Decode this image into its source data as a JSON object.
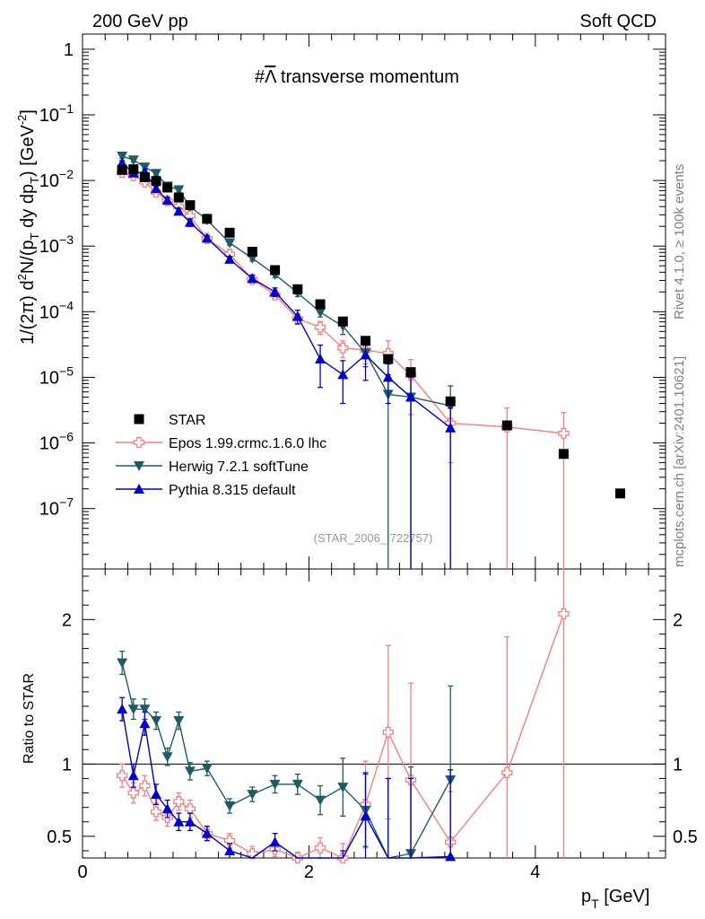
{
  "header": {
    "left": "200 GeV pp",
    "right": "Soft QCD"
  },
  "side_labels": {
    "rivet": "Rivet 4.1.0, ≥ 100k events",
    "mcplots": "mcplots.cern.ch [arXiv:2401.10621]"
  },
  "chart_data": {
    "type": "scatter",
    "title": "#Λ̅ transverse momentum",
    "title_parts": {
      "prefix": "#",
      "symbol": "Λ",
      "suffix": " transverse momentum"
    },
    "watermark": "(STAR_2006_I722757)",
    "ylabel_top": {
      "prefix": "1/(2",
      "pi": "π",
      "mid": ")  d",
      "sup2": "2",
      "main": "N/(p",
      "sub1": "T",
      "mid2": " dy dp",
      "sub2": "T",
      "close": ") [GeV",
      "sup": "-2",
      "end": "]"
    },
    "ylabel_bottom": "Ratio to STAR",
    "xlabel": {
      "main": "p",
      "sub": "T",
      "unit": " [GeV]"
    },
    "xlim": [
      0,
      5.15
    ],
    "ylim_top": [
      1.2e-08,
      1.7
    ],
    "ylim_ratio": [
      0.35,
      2.35
    ],
    "x_ticks": [
      {
        "value": 0,
        "label": "0"
      },
      {
        "value": 2,
        "label": "2"
      },
      {
        "value": 4,
        "label": "4"
      }
    ],
    "y_ticks_top": [
      {
        "value": 1,
        "base": "1",
        "exp": ""
      },
      {
        "value": 0.1,
        "base": "10",
        "exp": "−1"
      },
      {
        "value": 0.01,
        "base": "10",
        "exp": "−2"
      },
      {
        "value": 0.001,
        "base": "10",
        "exp": "−3"
      },
      {
        "value": 0.0001,
        "base": "10",
        "exp": "−4"
      },
      {
        "value": 1e-05,
        "base": "10",
        "exp": "−5"
      },
      {
        "value": 1e-06,
        "base": "10",
        "exp": "−6"
      },
      {
        "value": 1e-07,
        "base": "10",
        "exp": "−7"
      }
    ],
    "y_ticks_ratio": [
      {
        "value": 0.5,
        "label": "0.5"
      },
      {
        "value": 1,
        "label": "1"
      },
      {
        "value": 2,
        "label": "2"
      }
    ],
    "legend": [
      {
        "name": "STAR",
        "color": "#000000",
        "marker": "square"
      },
      {
        "name": "Epos 1.99.crmc.1.6.0 lhc",
        "color": "#f47f7f",
        "marker": "cross"
      },
      {
        "name": "Herwig 7.2.1 softTune",
        "color": "#1f5b63",
        "marker": "tri-down"
      },
      {
        "name": "Pythia 8.315 default",
        "color": "#0000cc",
        "marker": "tri-up"
      }
    ],
    "data": {
      "name": "STAR",
      "x": [
        0.35,
        0.45,
        0.55,
        0.65,
        0.75,
        0.85,
        0.95,
        1.1,
        1.3,
        1.5,
        1.7,
        1.9,
        2.1,
        2.3,
        2.5,
        2.7,
        2.9,
        3.25,
        3.75,
        4.25,
        4.75
      ],
      "y": [
        0.0145,
        0.0148,
        0.0112,
        0.0098,
        0.0078,
        0.0055,
        0.0042,
        0.0026,
        0.0016,
        0.00082,
        0.00043,
        0.00022,
        0.00013,
        7.1e-05,
        3.6e-05,
        1.9e-05,
        1.2e-05,
        4.3e-06,
        1.85e-06,
        6.8e-07,
        1.7e-07
      ]
    },
    "series": [
      {
        "name": "Epos 1.99.crmc.1.6.0 lhc",
        "color": "#f47f7f",
        "marker": "cross",
        "x": [
          0.35,
          0.45,
          0.55,
          0.65,
          0.75,
          0.85,
          0.95,
          1.1,
          1.3,
          1.5,
          1.7,
          1.9,
          2.1,
          2.3,
          2.5,
          2.7,
          2.9,
          3.25,
          3.75,
          4.25
        ],
        "y": [
          0.0132,
          0.0118,
          0.0095,
          0.0066,
          0.0049,
          0.004,
          0.0029,
          0.0013,
          0.00075,
          0.00031,
          0.00018,
          7.8e-05,
          5.8e-05,
          2.8e-05,
          2.6e-05,
          2.3e-05,
          1.07e-05,
          2e-06,
          1.75e-06,
          1.4e-06
        ],
        "err_lo": [
          0.0014,
          0.0012,
          0.0009,
          0.0006,
          0.0005,
          0.0004,
          0.0003,
          0.00012,
          7e-05,
          4e-05,
          2.5e-05,
          1.3e-05,
          1.3e-05,
          8e-06,
          1e-05,
          1.3e-05,
          8e-06,
          1.5e-06,
          1.75e-06,
          1.4e-06
        ],
        "err_hi": [
          0.0014,
          0.0012,
          0.0009,
          0.0006,
          0.0005,
          0.0004,
          0.0003,
          0.00012,
          7e-05,
          4e-05,
          2.5e-05,
          1.3e-05,
          1.3e-05,
          8e-06,
          1e-05,
          1.3e-05,
          8e-06,
          1.5e-06,
          1.65e-06,
          1.5e-06
        ],
        "ratio": [
          0.92,
          0.8,
          0.85,
          0.67,
          0.63,
          0.74,
          0.69,
          0.52,
          0.47,
          0.38,
          0.41,
          0.35,
          0.42,
          0.35,
          0.72,
          1.22,
          0.89,
          0.46,
          0.94,
          2.04
        ],
        "ratio_err": [
          0.08,
          0.07,
          0.07,
          0.06,
          0.06,
          0.06,
          0.06,
          0.05,
          0.05,
          0.05,
          0.05,
          0.04,
          0.07,
          0.1,
          0.3,
          0.6,
          0.67,
          0.35,
          0.94,
          2.0
        ]
      },
      {
        "name": "Herwig 7.2.1 softTune",
        "color": "#1f5b63",
        "marker": "tri-down",
        "x": [
          0.35,
          0.45,
          0.55,
          0.65,
          0.75,
          0.85,
          0.95,
          1.1,
          1.3,
          1.5,
          1.7,
          1.9,
          2.1,
          2.3,
          2.5,
          2.7,
          2.9,
          3.25
        ],
        "y": [
          0.0235,
          0.0205,
          0.016,
          0.0128,
          0.0082,
          0.0072,
          0.004,
          0.0025,
          0.00112,
          0.00065,
          0.00037,
          0.000195,
          9.8e-05,
          6e-05,
          2.35e-05,
          5.5e-06,
          5e-06,
          3.7e-06
        ],
        "err_lo": [
          0.0018,
          0.0015,
          0.0012,
          0.001,
          0.0007,
          0.0006,
          0.0004,
          0.0002,
          9e-05,
          6e-05,
          4e-05,
          2.5e-05,
          1.5e-05,
          1.5e-05,
          9e-06,
          5.5e-06,
          5e-06,
          3.7e-06
        ],
        "err_hi": [
          0.0018,
          0.0015,
          0.0012,
          0.001,
          0.0007,
          0.0006,
          0.0004,
          0.0002,
          9e-05,
          6e-05,
          4e-05,
          2.5e-05,
          1.5e-05,
          1.5e-05,
          9e-06,
          5.5e-06,
          5e-06,
          3.7e-06
        ],
        "ratio": [
          1.7,
          1.38,
          1.38,
          1.3,
          1.05,
          1.3,
          0.95,
          0.97,
          0.71,
          0.79,
          0.86,
          0.86,
          0.75,
          0.84,
          0.68,
          0.3,
          0.38,
          0.89
        ],
        "ratio_err": [
          0.08,
          0.07,
          0.07,
          0.06,
          0.06,
          0.06,
          0.06,
          0.05,
          0.05,
          0.05,
          0.06,
          0.07,
          0.1,
          0.2,
          0.25,
          0.6,
          0.6,
          0.65
        ]
      },
      {
        "name": "Pythia 8.315 default",
        "color": "#0000cc",
        "marker": "tri-up",
        "x": [
          0.35,
          0.45,
          0.55,
          0.65,
          0.75,
          0.85,
          0.95,
          1.1,
          1.3,
          1.5,
          1.7,
          1.9,
          2.1,
          2.3,
          2.5,
          2.7,
          2.9,
          3.25
        ],
        "y": [
          0.0185,
          0.013,
          0.0135,
          0.0075,
          0.005,
          0.0034,
          0.0023,
          0.00132,
          0.00063,
          0.00032,
          0.0002,
          8.5e-05,
          1.9e-05,
          1.1e-05,
          2.2e-05,
          1e-05,
          5e-06,
          1.7e-06
        ],
        "err_lo": [
          0.0015,
          0.0012,
          0.0011,
          0.0007,
          0.0005,
          0.0004,
          0.0003,
          0.00012,
          6e-05,
          4e-05,
          3e-05,
          2e-05,
          1.2e-05,
          7e-06,
          1.3e-05,
          6e-06,
          5e-06,
          1.7e-06
        ],
        "err_hi": [
          0.0015,
          0.0012,
          0.0011,
          0.0007,
          0.0005,
          0.0004,
          0.0003,
          0.00012,
          6e-05,
          4e-05,
          3e-05,
          2e-05,
          1.2e-05,
          7e-06,
          1.3e-05,
          6e-06,
          5e-06,
          1.7e-06
        ],
        "ratio": [
          1.38,
          0.92,
          1.28,
          0.79,
          0.69,
          0.6,
          0.6,
          0.52,
          0.4,
          0.3,
          0.46,
          0.25,
          0.2,
          0.2,
          0.64,
          0.3,
          0.3,
          0.36
        ],
        "ratio_err": [
          0.08,
          0.08,
          0.08,
          0.07,
          0.06,
          0.06,
          0.06,
          0.05,
          0.05,
          0.05,
          0.06,
          0.07,
          0.1,
          0.2,
          0.3,
          0.6,
          0.6,
          0.6
        ]
      }
    ]
  }
}
